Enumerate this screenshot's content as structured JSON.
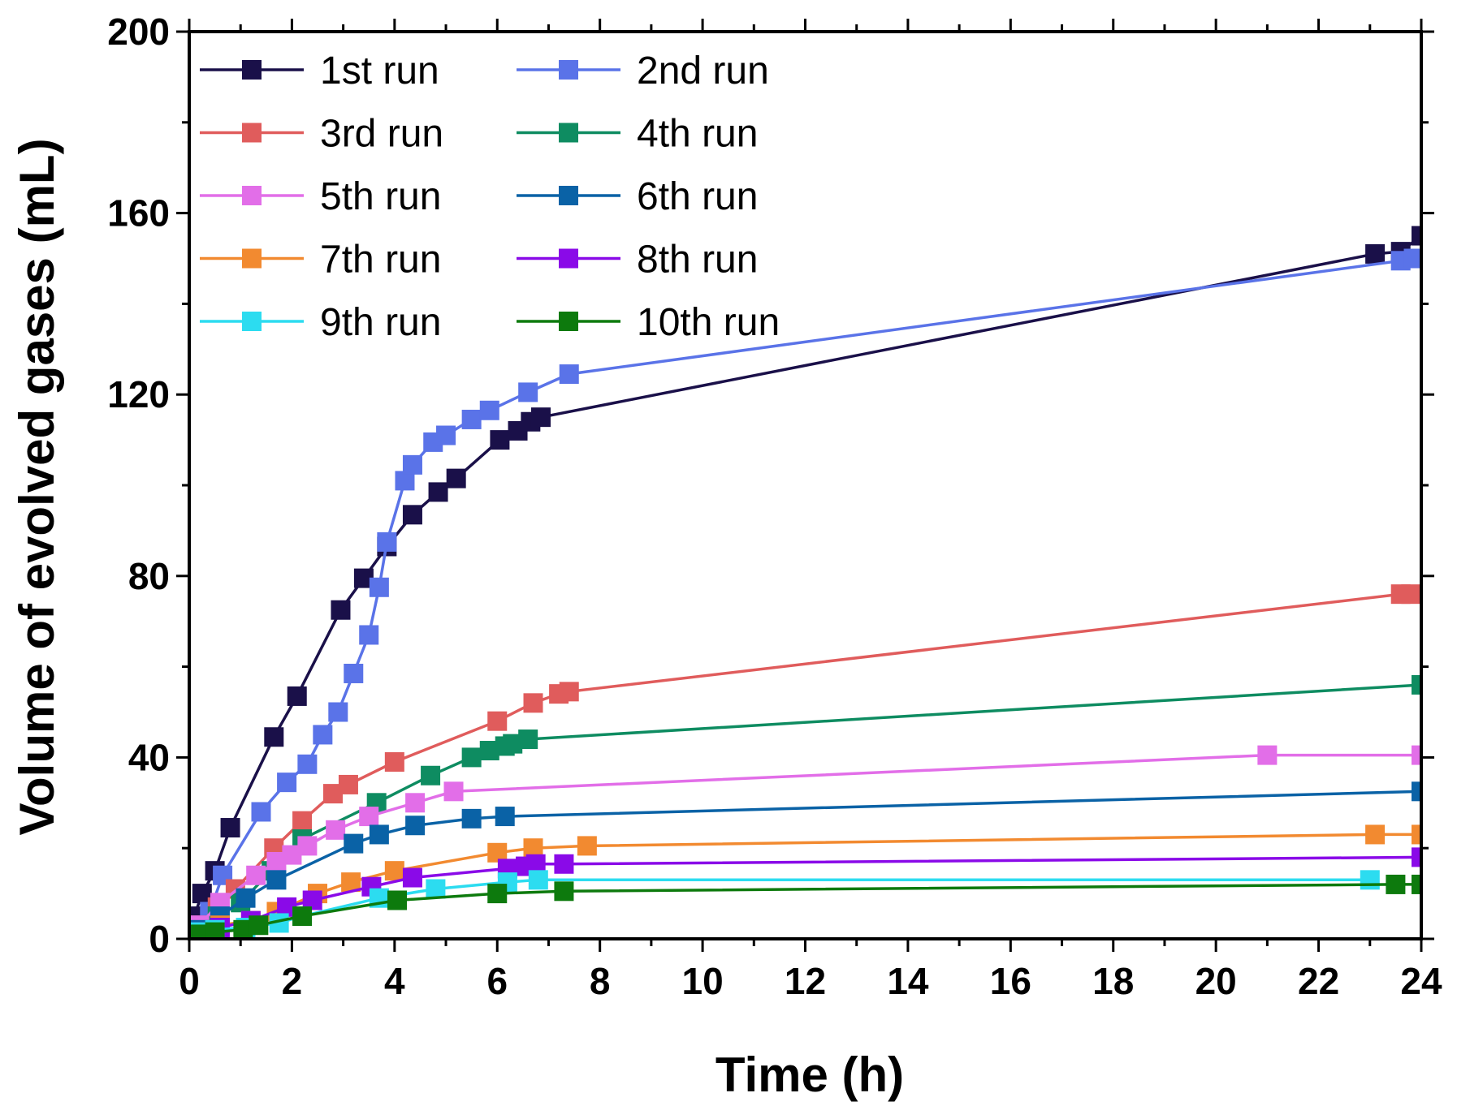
{
  "chart_data": {
    "type": "line",
    "title": "",
    "xlabel": "Time (h)",
    "ylabel": "Volume of evolved gases (mL)",
    "xlim": [
      0,
      24
    ],
    "ylim": [
      0,
      200
    ],
    "x_ticks": [
      "0",
      "2",
      "4",
      "6",
      "8",
      "10",
      "12",
      "14",
      "16",
      "18",
      "20",
      "22",
      "24"
    ],
    "y_ticks": [
      "0",
      "40",
      "80",
      "120",
      "160",
      "200"
    ],
    "legend_position": "top-left",
    "legend_suffix": "run",
    "series": [
      {
        "name": "1st run",
        "base": "1",
        "sup": "st",
        "color": "#1a1049",
        "x": [
          0.1,
          0.25,
          0.5,
          0.8,
          1.65,
          2.1,
          2.95,
          3.4,
          3.85,
          4.35,
          4.85,
          5.2,
          6.05,
          6.4,
          6.65,
          6.85,
          23.1,
          23.6,
          24.0
        ],
        "y": [
          5,
          10,
          15,
          24.5,
          44.5,
          53.5,
          72.5,
          79.5,
          86.5,
          93.5,
          98.5,
          101.5,
          110,
          112,
          114,
          115,
          151,
          151.5,
          155
        ]
      },
      {
        "name": "2nd run",
        "base": "2",
        "sup": "nd",
        "color": "#5a73e8",
        "x": [
          0.2,
          0.4,
          0.65,
          1.4,
          1.9,
          2.3,
          2.6,
          2.9,
          3.2,
          3.5,
          3.7,
          3.85,
          4.2,
          4.35,
          4.75,
          5.0,
          5.5,
          5.85,
          6.6,
          7.4,
          23.6,
          23.85
        ],
        "y": [
          3,
          6,
          14,
          28,
          34.5,
          38.5,
          45,
          50,
          58.5,
          67,
          77.5,
          87.5,
          101,
          104.5,
          109.5,
          111,
          114.5,
          116.5,
          120.5,
          124.5,
          149.5,
          150
        ]
      },
      {
        "name": "3rd run",
        "base": "3",
        "sup": "rd",
        "color": "#e05c5c",
        "x": [
          0.2,
          0.55,
          0.9,
          1.65,
          2.2,
          2.8,
          3.1,
          4.0,
          6.0,
          6.7,
          7.2,
          7.4,
          23.6,
          23.8
        ],
        "y": [
          3,
          7,
          11,
          20,
          26,
          32,
          34,
          39,
          48,
          52,
          54,
          54.5,
          76,
          76
        ]
      },
      {
        "name": "4th run",
        "base": "4",
        "sup": "th",
        "color": "#0e8c61",
        "x": [
          0.2,
          0.55,
          1.0,
          1.6,
          2.2,
          3.65,
          4.7,
          5.5,
          5.85,
          6.15,
          6.3,
          6.6,
          24.0
        ],
        "y": [
          2,
          5,
          8,
          15,
          22,
          30,
          36,
          40,
          41.5,
          42.5,
          43,
          44,
          56
        ]
      },
      {
        "name": "5th run",
        "base": "5",
        "sup": "th",
        "color": "#e26ee8",
        "x": [
          0.2,
          0.6,
          1.3,
          1.7,
          2.0,
          2.3,
          2.85,
          3.5,
          4.4,
          5.15,
          21.0,
          24.0
        ],
        "y": [
          3,
          8,
          14,
          17,
          18.5,
          20.5,
          24,
          27,
          30,
          32.5,
          40.5,
          40.5
        ]
      },
      {
        "name": "6th run",
        "base": "6",
        "sup": "th",
        "color": "#0a62a6",
        "x": [
          0.2,
          0.6,
          1.1,
          1.7,
          3.2,
          3.7,
          4.4,
          5.5,
          6.15,
          24.0
        ],
        "y": [
          2,
          5,
          9,
          13,
          21,
          23,
          25,
          26.5,
          27,
          32.5
        ]
      },
      {
        "name": "7th run",
        "base": "7",
        "sup": "th",
        "color": "#f28a30",
        "x": [
          0.2,
          0.6,
          1.2,
          1.7,
          2.5,
          3.15,
          4.0,
          6.0,
          6.7,
          7.75,
          23.1,
          24.0
        ],
        "y": [
          1.5,
          3,
          4,
          6,
          10,
          12.5,
          15,
          19,
          20,
          20.5,
          23,
          23
        ]
      },
      {
        "name": "8th run",
        "base": "8",
        "sup": "th",
        "color": "#8a0ae8",
        "x": [
          0.2,
          0.6,
          1.2,
          1.9,
          2.4,
          3.55,
          4.35,
          6.2,
          6.55,
          6.75,
          7.3,
          24.0
        ],
        "y": [
          1.5,
          2.5,
          4,
          7,
          8.5,
          11.5,
          13.5,
          15.5,
          16,
          16.5,
          16.5,
          18
        ]
      },
      {
        "name": "9th run",
        "base": "9",
        "sup": "th",
        "color": "#2cdcf0",
        "x": [
          0.2,
          0.5,
          1.1,
          1.75,
          2.2,
          3.7,
          4.8,
          6.2,
          6.8,
          23.0
        ],
        "y": [
          1.5,
          2,
          2.5,
          3.5,
          5,
          9,
          11,
          12.5,
          13,
          13
        ]
      },
      {
        "name": "10th run",
        "base": "10",
        "sup": "th",
        "color": "#0d7a0d",
        "x": [
          0.2,
          0.5,
          1.05,
          1.35,
          2.2,
          4.05,
          6.0,
          7.3,
          23.5,
          24.0
        ],
        "y": [
          1,
          1.5,
          2,
          3,
          5,
          8.5,
          10,
          10.5,
          12,
          12
        ]
      }
    ]
  }
}
